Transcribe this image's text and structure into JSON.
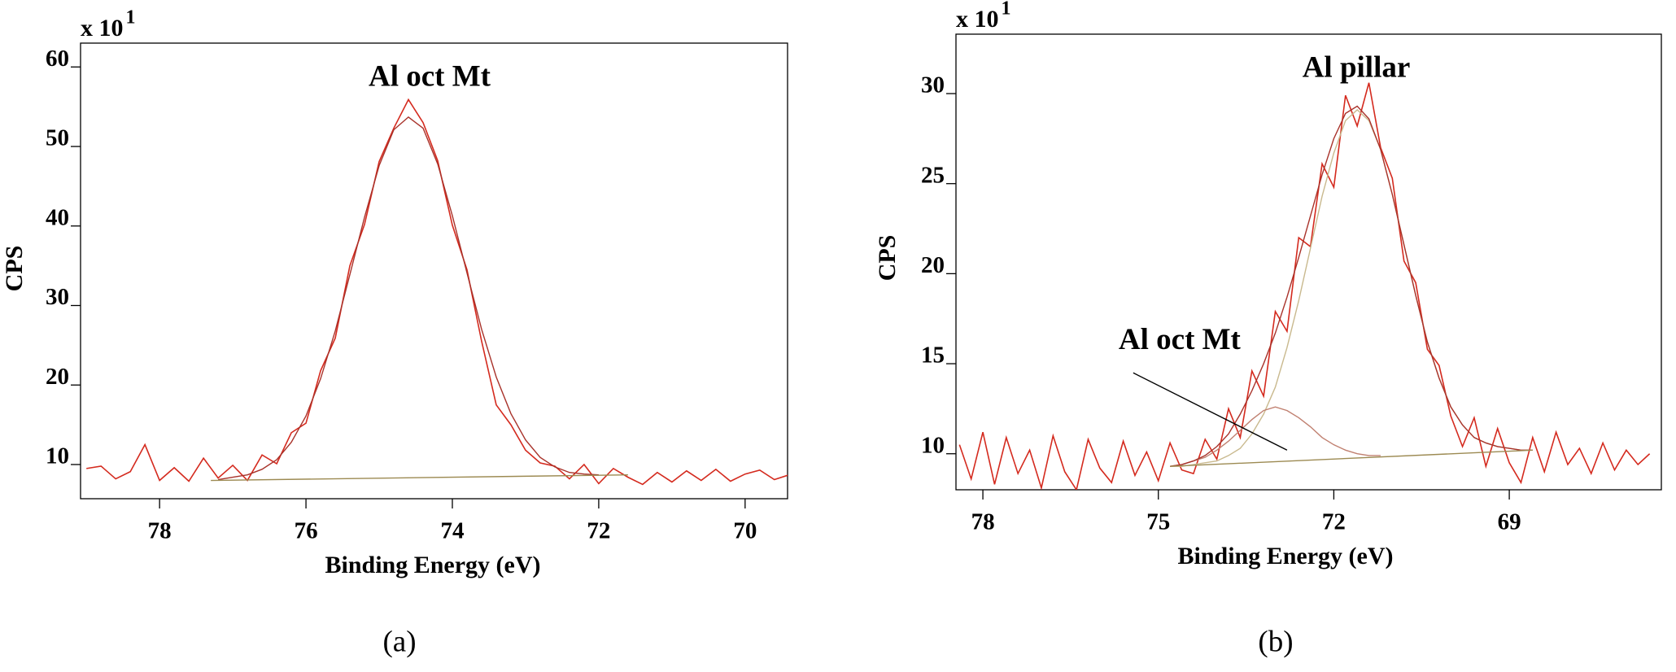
{
  "chart_data": [
    {
      "type": "line",
      "title": "Al oct Mt",
      "x_label": "Binding Energy (eV)",
      "y_label": "CPS",
      "y_multiplier": "x 10",
      "y_multiplier_exp": "1",
      "caption": "(a)",
      "xlim": [
        79.08,
        69.42
      ],
      "ylim": [
        5.7,
        63
      ],
      "xticks": [
        78,
        76,
        74,
        72,
        70
      ],
      "yticks": [
        10,
        20,
        30,
        40,
        50,
        60
      ],
      "series": [
        {
          "color": "#d42a1e",
          "x": [
            79.0,
            78.8,
            78.6,
            78.4,
            78.2,
            78.0,
            77.8,
            77.6,
            77.4,
            77.2,
            77.0,
            76.8,
            76.6,
            76.4,
            76.2,
            76.0,
            75.8,
            75.6,
            75.4,
            75.2,
            75.0,
            74.8,
            74.6,
            74.4,
            74.2,
            74.0,
            73.8,
            73.6,
            73.4,
            73.2,
            73.0,
            72.8,
            72.6,
            72.4,
            72.2,
            72.0,
            71.8,
            71.6,
            71.4,
            71.2,
            71.0,
            70.8,
            70.6,
            70.4,
            70.2,
            70.0,
            69.8,
            69.6,
            69.4
          ],
          "values": [
            9.5,
            9.8,
            8.2,
            9.1,
            12.5,
            8.0,
            9.6,
            7.9,
            10.8,
            8.3,
            9.9,
            8.0,
            11.2,
            10.1,
            14.0,
            15.2,
            21.8,
            25.9,
            35.0,
            40.2,
            48.1,
            52.3,
            55.9,
            53.0,
            48.2,
            40.1,
            34.5,
            25.5,
            17.5,
            15.0,
            11.8,
            10.2,
            9.8,
            8.2,
            10.0,
            7.6,
            9.5,
            8.4,
            7.5,
            9.0,
            7.8,
            9.2,
            8.0,
            9.4,
            7.9,
            8.8,
            9.3,
            8.1,
            8.7
          ]
        },
        {
          "color": "#a8322a",
          "x": [
            77.2,
            77.0,
            76.8,
            76.6,
            76.4,
            76.2,
            76.0,
            75.8,
            75.6,
            75.4,
            75.2,
            75.0,
            74.8,
            74.6,
            74.4,
            74.2,
            74.0,
            73.8,
            73.6,
            73.4,
            73.2,
            73.0,
            72.8,
            72.6,
            72.4,
            72.2,
            72.0
          ],
          "values": [
            8.1,
            8.4,
            8.7,
            9.4,
            10.6,
            12.8,
            16.1,
            20.8,
            26.8,
            33.9,
            41.1,
            47.6,
            52.1,
            53.7,
            52.3,
            47.8,
            41.3,
            34.1,
            27.0,
            21.0,
            16.4,
            13.1,
            10.9,
            9.7,
            9.0,
            8.8,
            8.7
          ]
        },
        {
          "color": "#9c8a52",
          "x": [
            77.3,
            71.6
          ],
          "values": [
            8.0,
            8.7
          ]
        }
      ]
    },
    {
      "type": "line",
      "title": "Al pillar",
      "x_label": "Binding Energy (eV)",
      "y_label": "CPS",
      "y_multiplier": "x 10",
      "y_multiplier_exp": "1",
      "caption": "(b)",
      "xlim": [
        78.46,
        66.4
      ],
      "ylim": [
        8.0,
        33.3
      ],
      "xticks": [
        78,
        75,
        72,
        69
      ],
      "yticks": [
        10,
        15,
        20,
        25,
        30
      ],
      "annotations": [
        {
          "text": "Al oct Mt",
          "x": 72.8,
          "y": 10.2
        }
      ],
      "series": [
        {
          "color": "#d42a1e",
          "x": [
            78.4,
            78.2,
            78.0,
            77.8,
            77.6,
            77.4,
            77.2,
            77.0,
            76.8,
            76.6,
            76.4,
            76.2,
            76.0,
            75.8,
            75.6,
            75.4,
            75.2,
            75.0,
            74.8,
            74.6,
            74.4,
            74.2,
            74.0,
            73.8,
            73.6,
            73.4,
            73.2,
            73.0,
            72.8,
            72.6,
            72.4,
            72.2,
            72.0,
            71.8,
            71.6,
            71.4,
            71.2,
            71.0,
            70.8,
            70.6,
            70.4,
            70.2,
            70.0,
            69.8,
            69.6,
            69.4,
            69.2,
            69.0,
            68.8,
            68.6,
            68.4,
            68.2,
            68.0,
            67.8,
            67.6,
            67.4,
            67.2,
            67.0,
            66.8,
            66.6
          ],
          "values": [
            10.5,
            8.6,
            11.2,
            8.3,
            10.9,
            8.9,
            10.2,
            8.1,
            11.0,
            9.0,
            8.0,
            10.8,
            9.2,
            8.4,
            10.7,
            8.8,
            10.1,
            8.5,
            10.6,
            9.1,
            8.9,
            10.8,
            9.7,
            12.5,
            10.9,
            14.6,
            13.2,
            17.9,
            16.8,
            22.0,
            21.5,
            26.1,
            24.8,
            29.9,
            28.2,
            30.6,
            27.0,
            25.3,
            20.7,
            19.5,
            15.8,
            14.9,
            12.1,
            10.4,
            12.0,
            9.3,
            11.4,
            9.5,
            8.4,
            10.9,
            9.0,
            11.2,
            9.4,
            10.3,
            8.9,
            10.6,
            9.1,
            10.2,
            9.4,
            10.0
          ]
        },
        {
          "color": "#c9b98e",
          "x": [
            74.8,
            74.6,
            74.4,
            74.2,
            74.0,
            73.8,
            73.6,
            73.4,
            73.2,
            73.0,
            72.8,
            72.6,
            72.4,
            72.2,
            72.0,
            71.8,
            71.6,
            71.4,
            71.2,
            71.0,
            70.8,
            70.6,
            70.4,
            70.2,
            70.0,
            69.8,
            69.6,
            69.4,
            69.2,
            69.0,
            68.8,
            68.6
          ],
          "values": [
            9.3,
            9.3,
            9.4,
            9.5,
            9.6,
            9.9,
            10.3,
            11.1,
            12.2,
            13.7,
            15.9,
            18.5,
            21.4,
            24.3,
            26.7,
            28.5,
            29.1,
            28.5,
            26.9,
            24.4,
            21.6,
            18.8,
            16.2,
            14.2,
            12.6,
            11.6,
            10.9,
            10.6,
            10.4,
            10.3,
            10.2,
            10.2
          ]
        },
        {
          "color": "#c08070",
          "x": [
            74.8,
            74.6,
            74.4,
            74.2,
            74.0,
            73.8,
            73.6,
            73.4,
            73.2,
            73.0,
            72.8,
            72.6,
            72.4,
            72.2,
            72.0,
            71.8,
            71.6,
            71.4,
            71.2
          ],
          "values": [
            9.3,
            9.4,
            9.6,
            9.8,
            10.2,
            10.7,
            11.3,
            11.9,
            12.4,
            12.6,
            12.4,
            12.0,
            11.5,
            10.9,
            10.5,
            10.2,
            10.0,
            9.9,
            9.9
          ]
        },
        {
          "color": "#a8322a",
          "x": [
            74.8,
            74.6,
            74.4,
            74.2,
            74.0,
            73.8,
            73.6,
            73.4,
            73.2,
            73.0,
            72.8,
            72.6,
            72.4,
            72.2,
            72.0,
            71.8,
            71.6,
            71.4,
            71.2,
            71.0,
            70.8,
            70.6,
            70.4,
            70.2,
            70.0,
            69.8,
            69.6,
            69.4,
            69.2,
            69.0,
            68.8,
            68.6
          ],
          "values": [
            9.3,
            9.4,
            9.6,
            9.9,
            10.4,
            11.1,
            12.2,
            13.5,
            15.0,
            16.7,
            18.7,
            20.9,
            23.2,
            25.5,
            27.5,
            28.9,
            29.3,
            28.6,
            26.9,
            24.4,
            21.6,
            18.8,
            16.2,
            14.2,
            12.6,
            11.6,
            10.9,
            10.6,
            10.4,
            10.3,
            10.2,
            10.2
          ]
        },
        {
          "color": "#9c8a52",
          "x": [
            74.8,
            68.6
          ],
          "values": [
            9.3,
            10.2
          ]
        }
      ]
    }
  ]
}
